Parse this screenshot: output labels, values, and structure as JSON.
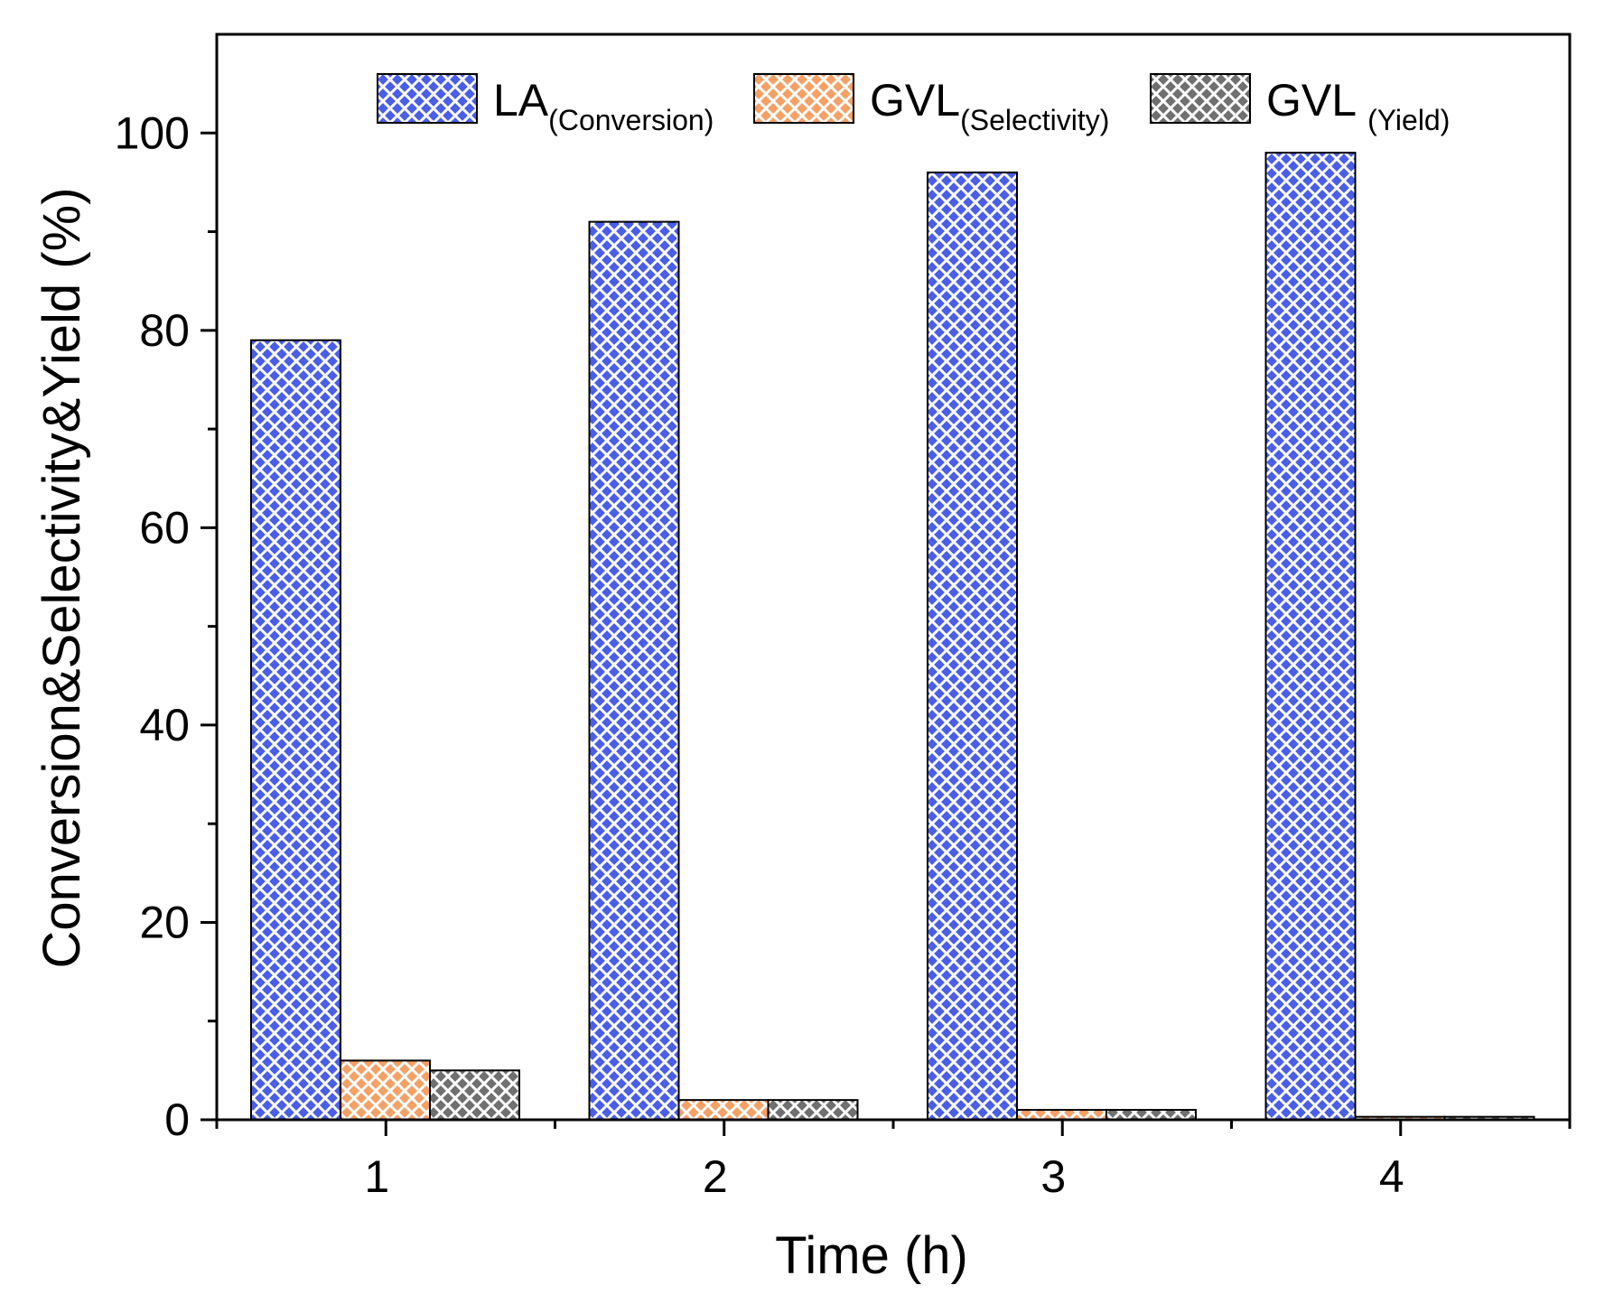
{
  "chart_data": {
    "type": "bar",
    "title": "",
    "xlabel": "Time (h)",
    "ylabel": "Conversion&Selectivity&Yield (%)",
    "categories": [
      "1",
      "2",
      "3",
      "4"
    ],
    "ylim": [
      0,
      110
    ],
    "yticks": [
      "0",
      "20",
      "40",
      "60",
      "80",
      "100"
    ],
    "ytick_values": [
      0,
      20,
      40,
      60,
      80,
      100
    ],
    "grid": false,
    "legend_position": "top",
    "series": [
      {
        "name": "LA",
        "subscript": "(Conversion)",
        "color": "#4a5ee8",
        "pattern": "crosshatch",
        "values": [
          79,
          91,
          96,
          98
        ]
      },
      {
        "name": "GVL",
        "subscript": "(Selectivity)",
        "color": "#f5a064",
        "pattern": "crosshatch",
        "values": [
          6,
          2,
          1,
          0.3
        ]
      },
      {
        "name": "GVL ",
        "subscript": "(Yield)",
        "color": "#707070",
        "pattern": "crosshatch",
        "values": [
          5,
          2,
          1,
          0.3
        ]
      }
    ]
  }
}
